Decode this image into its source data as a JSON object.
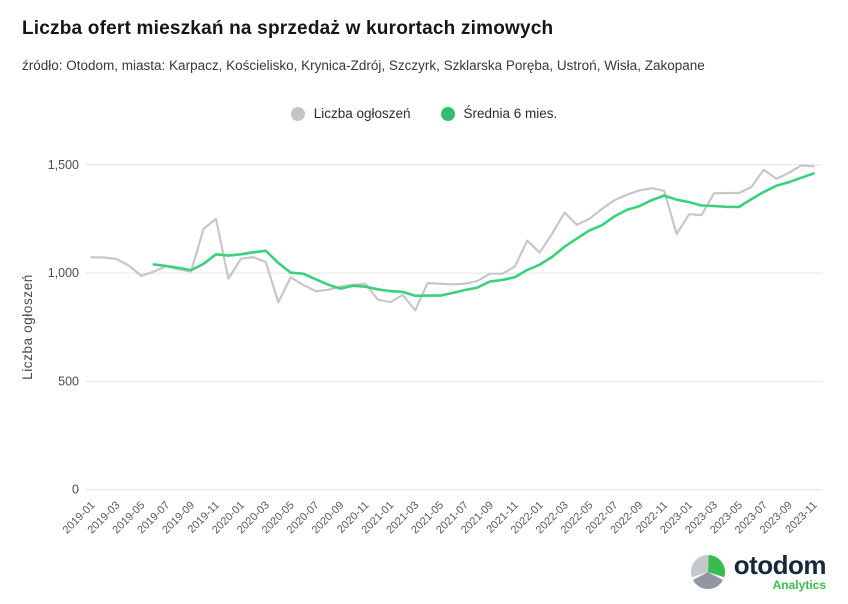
{
  "header": {
    "title": "Liczba ofert mieszkań na sprzedaż w kurortach zimowych",
    "subtitle": "źródło: Otodom, miasta: Karpacz, Kościelisko, Krynica-Zdrój, Szczyrk, Szklarska Poręba, Ustroń, Wisła, Zakopane"
  },
  "legend": [
    {
      "label": "Liczba ogłoszeń",
      "color": "#c4c4c4"
    },
    {
      "label": "Średnia 6 mies.",
      "color": "#2fbf6f"
    }
  ],
  "chart_data": {
    "type": "line",
    "title": "Liczba ofert mieszkań na sprzedaż w kurortach zimowych",
    "xlabel": "",
    "ylabel": "Liczba ogłoszeń",
    "ylim": [
      0,
      1500
    ],
    "yticks": [
      0,
      500,
      1000,
      1500
    ],
    "ytick_labels": [
      "0",
      "500",
      "1,000",
      "1,500"
    ],
    "xtick_every": 2,
    "grid": true,
    "legend_position": "top-center",
    "x": [
      "2019-01",
      "2019-02",
      "2019-03",
      "2019-04",
      "2019-05",
      "2019-06",
      "2019-07",
      "2019-08",
      "2019-09",
      "2019-10",
      "2019-11",
      "2019-12",
      "2020-01",
      "2020-02",
      "2020-03",
      "2020-04",
      "2020-05",
      "2020-06",
      "2020-07",
      "2020-08",
      "2020-09",
      "2020-10",
      "2020-11",
      "2020-12",
      "2021-01",
      "2021-02",
      "2021-03",
      "2021-04",
      "2021-05",
      "2021-06",
      "2021-07",
      "2021-08",
      "2021-09",
      "2021-10",
      "2021-11",
      "2021-12",
      "2022-01",
      "2022-02",
      "2022-03",
      "2022-04",
      "2022-05",
      "2022-06",
      "2022-07",
      "2022-08",
      "2022-09",
      "2022-10",
      "2022-11",
      "2022-12",
      "2023-01",
      "2023-02",
      "2023-03",
      "2023-04",
      "2023-05",
      "2023-06",
      "2023-07",
      "2023-08",
      "2023-09",
      "2023-10",
      "2023-11"
    ],
    "series": [
      {
        "id": "ads",
        "name": "Liczba ogłoszeń",
        "color": "#c7c7c7",
        "start_index": 0,
        "values": [
          1073,
          1072,
          1065,
          1035,
          987,
          1007,
          1032,
          1017,
          1008,
          1205,
          1250,
          974,
          1066,
          1074,
          1051,
          865,
          980,
          946,
          917,
          923,
          938,
          946,
          951,
          877,
          866,
          900,
          828,
          954,
          951,
          948,
          951,
          963,
          997,
          997,
          1030,
          1150,
          1094,
          1182,
          1280,
          1223,
          1251,
          1297,
          1336,
          1362,
          1382,
          1392,
          1380,
          1180,
          1272,
          1268,
          1368,
          1370,
          1370,
          1397,
          1477,
          1436,
          1462,
          1497,
          1493
        ]
      },
      {
        "id": "avg6m",
        "name": "Średnia 6 mies.",
        "color": "#3bd17c",
        "start_index": 5,
        "values": [
          1040,
          1033,
          1024,
          1014,
          1043,
          1087,
          1081,
          1087,
          1096,
          1103,
          1047,
          1002,
          997,
          972,
          947,
          928,
          942,
          937,
          925,
          917,
          913,
          895,
          896,
          896,
          908,
          922,
          933,
          961,
          968,
          981,
          1015,
          1039,
          1075,
          1122,
          1160,
          1197,
          1221,
          1262,
          1292,
          1309,
          1337,
          1358,
          1339,
          1328,
          1312,
          1310,
          1306,
          1305,
          1341,
          1375,
          1403,
          1419,
          1440,
          1460
        ]
      }
    ]
  },
  "logo": {
    "text": "otodom",
    "subtext": "Analytics",
    "colors": {
      "navy": "#16293b",
      "green": "#38bd4c",
      "gray_light": "#c3c8cd",
      "gray_dark": "#9097a0"
    }
  }
}
